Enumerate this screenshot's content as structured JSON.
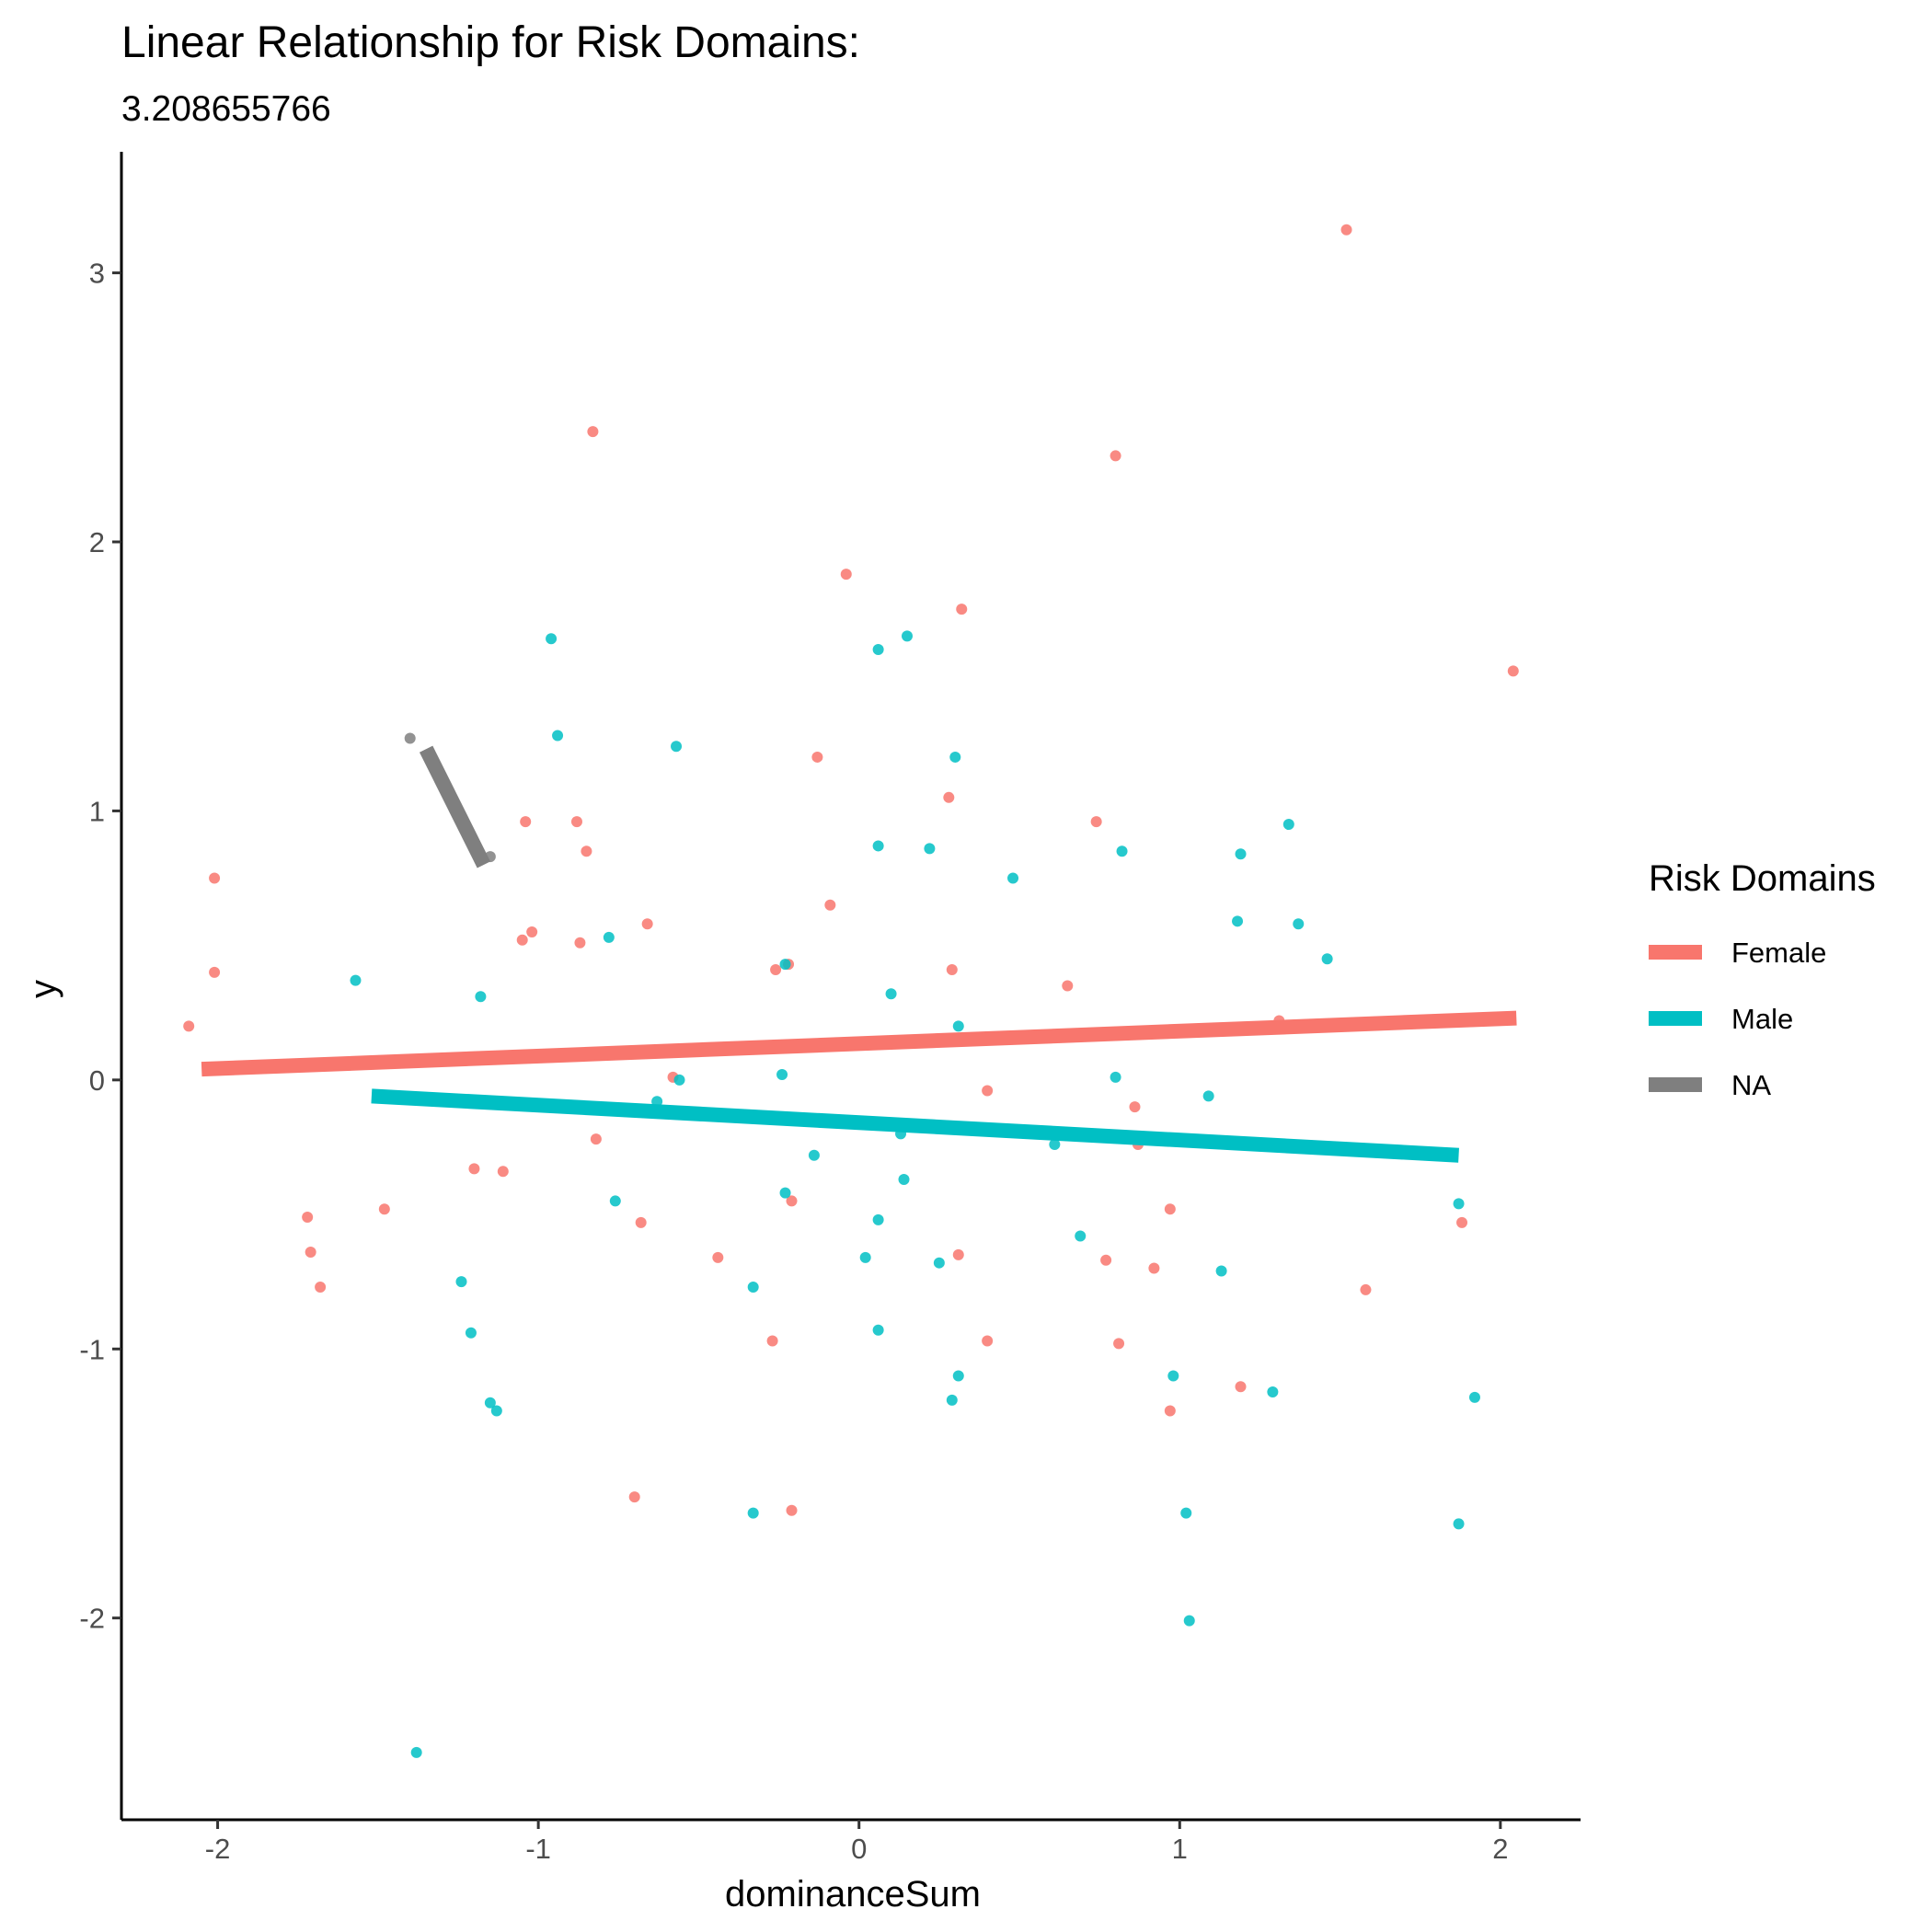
{
  "chart_data": {
    "type": "scatter",
    "title": "Linear Relationship for Risk Domains:",
    "subtitle": "3.208655766",
    "xlabel": "dominanceSum",
    "ylabel": "y",
    "xlim": [
      -2.3,
      2.25
    ],
    "ylim": [
      -2.75,
      3.45
    ],
    "x_ticks": [
      -2,
      -1,
      0,
      1,
      2
    ],
    "x_tick_labels": [
      "-2",
      "-1",
      "0",
      "1",
      "2"
    ],
    "y_ticks": [
      -2,
      -1,
      0,
      1,
      2,
      3
    ],
    "y_tick_labels": [
      "-2",
      "-1",
      "0",
      "1",
      "2",
      "3"
    ],
    "grid": false,
    "legend": {
      "title": "Risk Domains",
      "position": "right"
    },
    "series": [
      {
        "name": "Female",
        "color": "#F8766D",
        "fit": {
          "x": [
            -2.05,
            2.05
          ],
          "y": [
            0.04,
            0.23
          ]
        },
        "points": [
          [
            -2.09,
            0.2
          ],
          [
            -2.01,
            0.75
          ],
          [
            -2.01,
            0.4
          ],
          [
            -1.72,
            -0.51
          ],
          [
            -1.71,
            -0.64
          ],
          [
            -1.68,
            -0.77
          ],
          [
            -1.48,
            -0.48
          ],
          [
            -1.2,
            -0.33
          ],
          [
            -1.11,
            -0.34
          ],
          [
            -1.05,
            0.52
          ],
          [
            -1.04,
            0.96
          ],
          [
            -1.02,
            0.55
          ],
          [
            -0.88,
            0.96
          ],
          [
            -0.87,
            0.51
          ],
          [
            -0.85,
            0.85
          ],
          [
            -0.83,
            2.41
          ],
          [
            -0.82,
            -0.22
          ],
          [
            -0.7,
            -1.55
          ],
          [
            -0.68,
            -0.53
          ],
          [
            -0.66,
            0.58
          ],
          [
            -0.58,
            0.01
          ],
          [
            -0.44,
            -0.66
          ],
          [
            -0.27,
            -0.97
          ],
          [
            -0.26,
            0.41
          ],
          [
            -0.22,
            0.43
          ],
          [
            -0.21,
            -0.45
          ],
          [
            -0.21,
            -1.6
          ],
          [
            -0.13,
            1.2
          ],
          [
            -0.09,
            0.65
          ],
          [
            -0.04,
            1.88
          ],
          [
            0.28,
            1.05
          ],
          [
            0.29,
            0.41
          ],
          [
            0.31,
            -0.65
          ],
          [
            0.32,
            1.75
          ],
          [
            0.4,
            -0.04
          ],
          [
            0.4,
            -0.97
          ],
          [
            0.65,
            0.35
          ],
          [
            0.74,
            0.96
          ],
          [
            0.77,
            -0.67
          ],
          [
            0.8,
            2.32
          ],
          [
            0.81,
            -0.98
          ],
          [
            0.86,
            -0.1
          ],
          [
            0.87,
            -0.24
          ],
          [
            0.92,
            -0.7
          ],
          [
            0.97,
            -0.48
          ],
          [
            0.97,
            -1.23
          ],
          [
            1.19,
            -1.14
          ],
          [
            1.31,
            0.22
          ],
          [
            1.52,
            3.16
          ],
          [
            1.58,
            -0.78
          ],
          [
            1.88,
            -0.53
          ],
          [
            2.04,
            1.52
          ]
        ]
      },
      {
        "name": "Male",
        "color": "#00BFC4",
        "fit": {
          "x": [
            -1.52,
            1.87
          ],
          "y": [
            -0.06,
            -0.28
          ]
        },
        "points": [
          [
            -1.57,
            0.37
          ],
          [
            -1.38,
            -2.5
          ],
          [
            -1.24,
            -0.75
          ],
          [
            -1.21,
            -0.94
          ],
          [
            -1.18,
            0.31
          ],
          [
            -1.15,
            -1.2
          ],
          [
            -1.13,
            -1.23
          ],
          [
            -0.96,
            1.64
          ],
          [
            -0.94,
            1.28
          ],
          [
            -0.78,
            0.53
          ],
          [
            -0.76,
            -0.45
          ],
          [
            -0.63,
            -0.08
          ],
          [
            -0.57,
            1.24
          ],
          [
            -0.56,
            0.0
          ],
          [
            -0.33,
            -1.61
          ],
          [
            -0.33,
            -0.77
          ],
          [
            -0.24,
            0.02
          ],
          [
            -0.23,
            0.43
          ],
          [
            -0.23,
            -0.42
          ],
          [
            -0.14,
            -0.28
          ],
          [
            0.02,
            -0.66
          ],
          [
            0.06,
            -0.52
          ],
          [
            0.06,
            -0.93
          ],
          [
            0.06,
            1.6
          ],
          [
            0.06,
            0.87
          ],
          [
            0.1,
            0.32
          ],
          [
            0.13,
            -0.2
          ],
          [
            0.14,
            -0.37
          ],
          [
            0.15,
            1.65
          ],
          [
            0.22,
            0.86
          ],
          [
            0.25,
            -0.68
          ],
          [
            0.29,
            -1.19
          ],
          [
            0.3,
            1.2
          ],
          [
            0.31,
            0.2
          ],
          [
            0.31,
            -1.1
          ],
          [
            0.48,
            0.75
          ],
          [
            0.61,
            -0.24
          ],
          [
            0.69,
            -0.58
          ],
          [
            0.8,
            0.01
          ],
          [
            0.82,
            0.85
          ],
          [
            0.98,
            -1.1
          ],
          [
            1.02,
            -1.61
          ],
          [
            1.03,
            -2.01
          ],
          [
            1.09,
            -0.06
          ],
          [
            1.13,
            -0.71
          ],
          [
            1.18,
            0.59
          ],
          [
            1.19,
            0.84
          ],
          [
            1.29,
            -1.16
          ],
          [
            1.34,
            0.95
          ],
          [
            1.37,
            0.58
          ],
          [
            1.46,
            0.45
          ],
          [
            1.87,
            -0.46
          ],
          [
            1.87,
            -1.65
          ],
          [
            1.92,
            -1.18
          ]
        ]
      },
      {
        "name": "NA",
        "color": "#7F7F7F",
        "fit": {
          "x": [
            -1.35,
            -1.17
          ],
          "y": [
            1.23,
            0.8
          ]
        },
        "points": [
          [
            -1.4,
            1.27
          ],
          [
            -1.15,
            0.83
          ]
        ]
      }
    ]
  }
}
